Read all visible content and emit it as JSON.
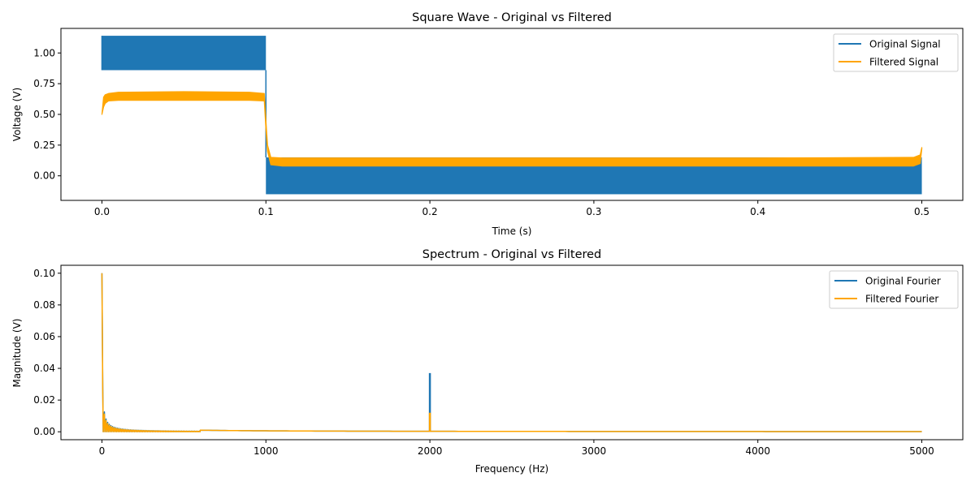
{
  "chart_data": [
    {
      "type": "line",
      "title": "Square Wave - Original vs Filtered",
      "xlabel": "Time (s)",
      "ylabel": "Voltage (V)",
      "xlim": [
        -0.025,
        0.525
      ],
      "ylim": [
        -0.2,
        1.2
      ],
      "xticks": [
        0.0,
        0.1,
        0.2,
        0.3,
        0.4,
        0.5
      ],
      "xtick_labels": [
        "0.0",
        "0.1",
        "0.2",
        "0.3",
        "0.4",
        "0.5"
      ],
      "yticks": [
        0.0,
        0.25,
        0.5,
        0.75,
        1.0
      ],
      "ytick_labels": [
        "0.00",
        "0.25",
        "0.50",
        "0.75",
        "1.00"
      ],
      "grid": false,
      "legend": "top-right",
      "series": [
        {
          "name": "Original Signal",
          "color": "#1f77b4",
          "style": "band",
          "segments": [
            {
              "x": [
                0.0,
                0.1
              ],
              "low": 0.86,
              "high": 1.14
            },
            {
              "x": [
                0.1,
                0.5
              ],
              "low": -0.15,
              "high": 0.15
            }
          ]
        },
        {
          "name": "Filtered Signal",
          "color": "#ffa500",
          "style": "band",
          "x": [
            0.0,
            0.001,
            0.002,
            0.004,
            0.01,
            0.05,
            0.09,
            0.099,
            0.1,
            0.101,
            0.103,
            0.11,
            0.2,
            0.3,
            0.4,
            0.495,
            0.499,
            0.5
          ],
          "low": [
            0.5,
            0.56,
            0.59,
            0.61,
            0.615,
            0.615,
            0.615,
            0.61,
            0.38,
            0.2,
            0.09,
            0.08,
            0.08,
            0.08,
            0.08,
            0.08,
            0.1,
            0.22
          ],
          "high": [
            0.5,
            0.64,
            0.66,
            0.67,
            0.68,
            0.685,
            0.68,
            0.67,
            0.45,
            0.25,
            0.15,
            0.145,
            0.145,
            0.145,
            0.145,
            0.15,
            0.17,
            0.23
          ]
        }
      ]
    },
    {
      "type": "line",
      "title": "Spectrum - Original vs Filtered",
      "xlabel": "Frequency (Hz)",
      "ylabel": "Magnitude (V)",
      "xlim": [
        -250,
        5250
      ],
      "ylim": [
        -0.005,
        0.105
      ],
      "xticks": [
        0,
        1000,
        2000,
        3000,
        4000,
        5000
      ],
      "xtick_labels": [
        "0",
        "1000",
        "2000",
        "3000",
        "4000",
        "5000"
      ],
      "yticks": [
        0.0,
        0.02,
        0.04,
        0.06,
        0.08,
        0.1
      ],
      "ytick_labels": [
        "0.00",
        "0.02",
        "0.04",
        "0.06",
        "0.08",
        "0.10"
      ],
      "grid": false,
      "legend": "top-right",
      "series": [
        {
          "name": "Original Fourier",
          "color": "#1f77b4",
          "style": "spectrum",
          "peak_x": 2000,
          "peak_y": 0.037
        },
        {
          "name": "Filtered Fourier",
          "color": "#ffa500",
          "style": "spectrum",
          "peak_x": 2000,
          "peak_y": 0.012
        }
      ]
    }
  ]
}
